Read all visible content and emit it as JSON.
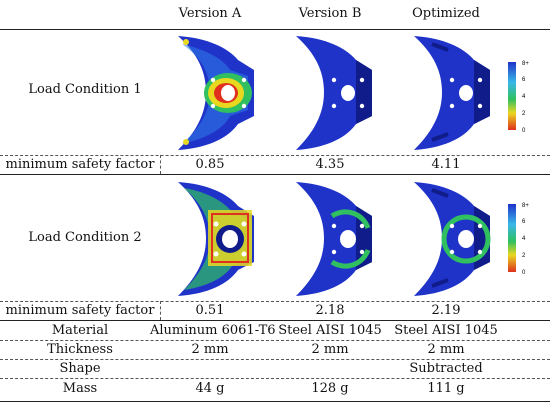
{
  "header": {
    "col_a": "Version A",
    "col_b": "Version B",
    "col_c": "Optimized"
  },
  "load1": {
    "label": "Load Condition 1"
  },
  "load2": {
    "label": "Load Condition 2"
  },
  "rows": {
    "msf1": {
      "label": "minimum safety factor",
      "a": "0.85",
      "b": "4.35",
      "c": "4.11"
    },
    "msf2": {
      "label": "minimum safety factor",
      "a": "0.51",
      "b": "2.18",
      "c": "2.19"
    },
    "material": {
      "label": "Material",
      "a": "Aluminum 6061-T6",
      "b": "Steel AISI 1045",
      "c": "Steel AISI 1045"
    },
    "thickness": {
      "label": "Thickness",
      "a": "2 mm",
      "b": "2 mm",
      "c": "2 mm"
    },
    "shape": {
      "label": "Shape",
      "a": "",
      "b": "",
      "c": "Subtracted"
    },
    "mass": {
      "label": "Mass",
      "a": "44 g",
      "b": "128 g",
      "c": "111 g"
    }
  },
  "legend": {
    "ticks": [
      "8+",
      "6",
      "4",
      "2",
      "0"
    ]
  },
  "colors": {
    "part_blue": "#1f33c9",
    "part_dark": "#0f1c8a",
    "hot_red": "#e0301e",
    "warm_yellow": "#e8d820",
    "mid_green": "#30c060",
    "cyan": "#38b8e8"
  }
}
